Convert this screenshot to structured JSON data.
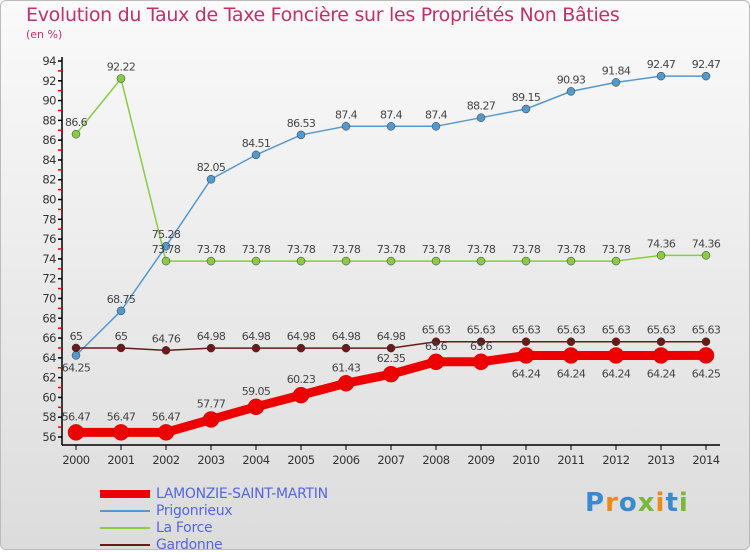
{
  "title": "Evolution du Taux de Taxe Foncière sur les Propriétés Non Bâties",
  "subtitle": "(en %)",
  "logo": "Proxiti",
  "chart_data": {
    "type": "line",
    "title": "Evolution du Taux de Taxe Foncière sur les Propriétés Non Bâties",
    "ylabel": "(en %)",
    "x": [
      2000,
      2001,
      2002,
      2003,
      2004,
      2005,
      2006,
      2007,
      2008,
      2009,
      2010,
      2011,
      2012,
      2013,
      2014
    ],
    "ylim": [
      56,
      94
    ],
    "yticks": [
      56,
      58,
      60,
      62,
      64,
      66,
      68,
      70,
      72,
      74,
      76,
      78,
      80,
      82,
      84,
      86,
      88,
      90,
      92,
      94
    ],
    "legend": "bottom-left",
    "series": [
      {
        "name": "LAMONZIE-SAINT-MARTIN",
        "color": "#ee0000",
        "values": [
          56.47,
          56.47,
          56.47,
          57.77,
          59.05,
          60.23,
          61.43,
          62.35,
          63.6,
          63.6,
          64.24,
          64.24,
          64.24,
          64.24,
          64.25
        ]
      },
      {
        "name": "Prigonrieux",
        "color": "#5599cc",
        "values": [
          64.25,
          68.75,
          75.28,
          82.05,
          84.51,
          86.53,
          87.4,
          87.4,
          87.4,
          88.27,
          89.15,
          90.93,
          91.84,
          92.47,
          92.47
        ]
      },
      {
        "name": "La Force",
        "color": "#88cc44",
        "values": [
          86.6,
          92.22,
          73.78,
          73.78,
          73.78,
          73.78,
          73.78,
          73.78,
          73.78,
          73.78,
          73.78,
          73.78,
          73.78,
          74.36,
          74.36
        ]
      },
      {
        "name": "Gardonne",
        "color": "#6b1a1a",
        "values": [
          65,
          65,
          64.76,
          64.98,
          64.98,
          64.98,
          64.98,
          64.98,
          65.63,
          65.63,
          65.63,
          65.63,
          65.63,
          65.63,
          65.63
        ]
      }
    ]
  }
}
